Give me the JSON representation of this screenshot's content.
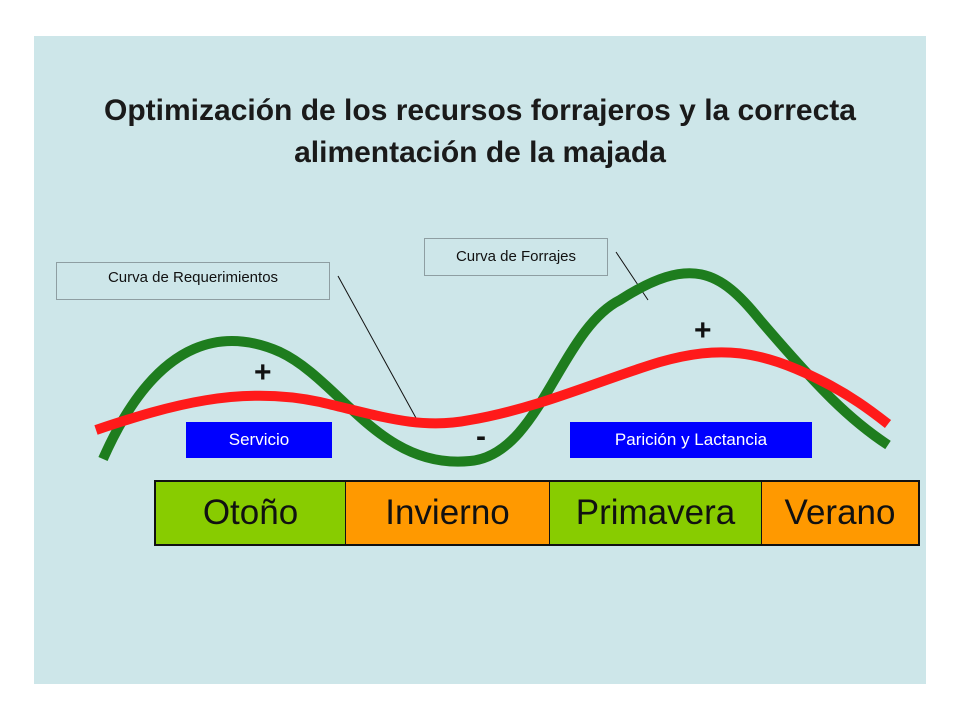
{
  "title": "Optimización de los recursos forrajeros y  la correcta alimentación de la majada",
  "callouts": {
    "requerimientos": "Curva de Requerimientos",
    "forrajes": "Curva de Forrajes"
  },
  "phases": {
    "servicio": "Servicio",
    "paricion": "Parición y Lactancia"
  },
  "signs": {
    "plus": "+",
    "minus": "-"
  },
  "seasons": [
    {
      "label": "Otoño",
      "color": "#88cc00"
    },
    {
      "label": "Invierno",
      "color": "#ff9900"
    },
    {
      "label": "Primavera",
      "color": "#88cc00"
    },
    {
      "label": "Verano",
      "color": "#ff9900"
    }
  ],
  "colors": {
    "background": "#cde6e9",
    "forage_curve": "#1e7d1e",
    "requirement_curve": "#ff1a1a",
    "phase_box": "#0000ff"
  }
}
